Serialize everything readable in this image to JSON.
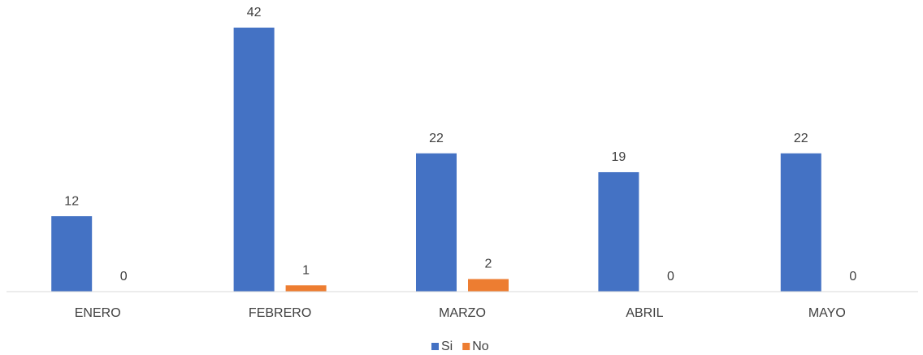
{
  "chart_data": {
    "type": "bar",
    "categories": [
      "ENERO",
      "FEBRERO",
      "MARZO",
      "ABRIL",
      "MAYO"
    ],
    "series": [
      {
        "name": "Si",
        "color": "#4472c4",
        "values": [
          12,
          42,
          22,
          19,
          22
        ]
      },
      {
        "name": "No",
        "color": "#ed7d31",
        "values": [
          0,
          1,
          2,
          0,
          0
        ]
      }
    ],
    "legend": "bottom"
  }
}
